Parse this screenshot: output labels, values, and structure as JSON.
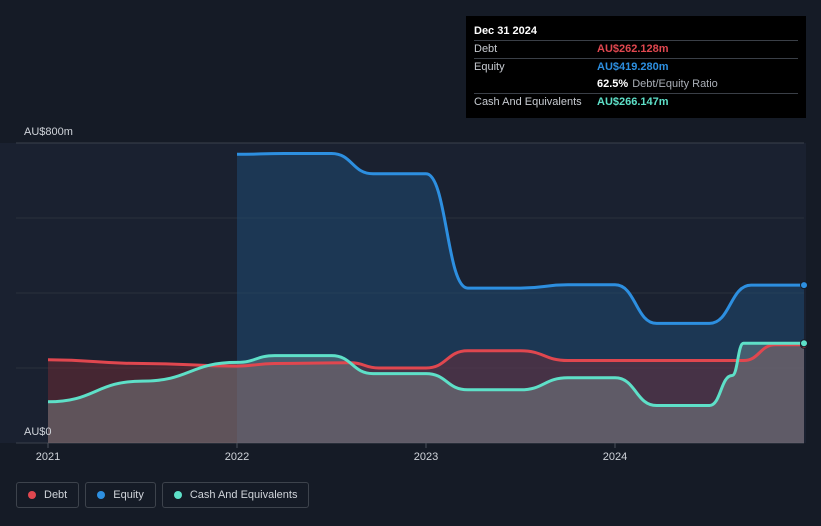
{
  "tooltip": {
    "date": "Dec 31 2024",
    "debt_label": "Debt",
    "debt_value": "AU$262.128m",
    "equity_label": "Equity",
    "equity_value": "AU$419.280m",
    "ratio_pct": "62.5%",
    "ratio_label": "Debt/Equity Ratio",
    "cash_label": "Cash And Equivalents",
    "cash_value": "AU$266.147m"
  },
  "legend": {
    "debt": "Debt",
    "equity": "Equity",
    "cash": "Cash And Equivalents"
  },
  "colors": {
    "debt": "#e0474f",
    "equity": "#2d8fe0",
    "cash": "#5ee0c8"
  },
  "chart_data": {
    "type": "area",
    "title": "",
    "xlabel": "",
    "ylabel": "",
    "ylim": [
      0,
      800
    ],
    "y_unit": "AU$m",
    "y_tick_labels": [
      "AU$800m",
      "AU$0"
    ],
    "x_ticks": [
      "2021",
      "2022",
      "2023",
      "2024"
    ],
    "grid": true,
    "legend_position": "bottom-left",
    "series": [
      {
        "name": "Debt",
        "points": [
          [
            2021.0,
            222
          ],
          [
            2021.5,
            212
          ],
          [
            2022.0,
            205
          ],
          [
            2022.2,
            212
          ],
          [
            2022.6,
            214
          ],
          [
            2022.75,
            200
          ],
          [
            2023.0,
            200
          ],
          [
            2023.22,
            246
          ],
          [
            2023.5,
            246
          ],
          [
            2023.75,
            220
          ],
          [
            2024.0,
            220
          ],
          [
            2024.5,
            220
          ],
          [
            2024.68,
            220
          ],
          [
            2024.85,
            262
          ],
          [
            2025.0,
            262
          ]
        ]
      },
      {
        "name": "Equity",
        "points": [
          [
            2022.0,
            770
          ],
          [
            2022.25,
            772
          ],
          [
            2022.5,
            772
          ],
          [
            2022.72,
            718
          ],
          [
            2023.0,
            718
          ],
          [
            2023.22,
            413
          ],
          [
            2023.5,
            413
          ],
          [
            2023.75,
            422
          ],
          [
            2024.0,
            422
          ],
          [
            2024.22,
            319
          ],
          [
            2024.5,
            319
          ],
          [
            2024.72,
            421
          ],
          [
            2025.0,
            421
          ]
        ]
      },
      {
        "name": "Cash And Equivalents",
        "points": [
          [
            2021.0,
            110
          ],
          [
            2021.5,
            165
          ],
          [
            2022.0,
            215
          ],
          [
            2022.2,
            233
          ],
          [
            2022.5,
            233
          ],
          [
            2022.72,
            185
          ],
          [
            2023.0,
            185
          ],
          [
            2023.22,
            142
          ],
          [
            2023.5,
            142
          ],
          [
            2023.75,
            174
          ],
          [
            2024.0,
            174
          ],
          [
            2024.22,
            100
          ],
          [
            2024.5,
            100
          ],
          [
            2024.62,
            180
          ],
          [
            2024.68,
            266
          ],
          [
            2025.0,
            266
          ]
        ]
      }
    ]
  }
}
